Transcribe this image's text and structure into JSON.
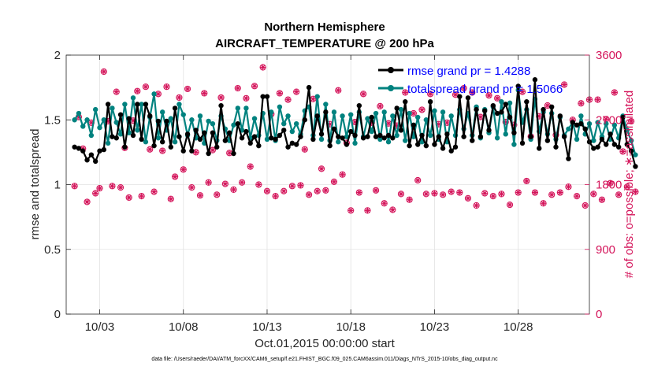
{
  "colors": {
    "rmse": "#000000",
    "spread": "#00827f",
    "obs": "#d4145a",
    "legend_text": "#0000ff",
    "grid": "#e2e2e2"
  },
  "footer": "data file: /Users/raeder/DAI/ATM_forcXX/CAM6_setup/f.e21.FHIST_BGC.f09_025.CAM6assim.011/Diags_NTrS_2015-10/obs_diag_output.nc",
  "chart_data": {
    "type": "line",
    "title": "Northern Hemisphere",
    "subtitle": "AIRCRAFT_TEMPERATURE @ 200 hPa",
    "xlabel": "Oct.01,2015 00:00:00 start",
    "ylabel": "rmse and totalspread",
    "y2label": "# of obs: o=possible; ∗=assimilated",
    "xlim": [
      1.0,
      32.25
    ],
    "ylim": [
      0,
      2
    ],
    "y2lim": [
      0,
      3600
    ],
    "x_ticks": [
      3,
      8,
      13,
      18,
      23,
      28
    ],
    "x_tick_labels": [
      "10/03",
      "10/08",
      "10/13",
      "10/18",
      "10/23",
      "10/28"
    ],
    "y_ticks": [
      0,
      0.5,
      1,
      1.5,
      2
    ],
    "y_tick_labels": [
      "0",
      "0.5",
      "1",
      "1.5",
      "2"
    ],
    "y2_ticks": [
      0,
      900,
      1800,
      2700,
      3600
    ],
    "y2_tick_labels": [
      "0",
      "900",
      "1800",
      "2700",
      "3600"
    ],
    "grid": true,
    "legend_position": "top-right",
    "series": [
      {
        "name": "rmse grand pr = 1.4288",
        "axis": "left",
        "style": "line-with-dot-markers",
        "values": [
          1.29,
          1.28,
          1.26,
          1.19,
          1.23,
          1.18,
          1.26,
          1.27,
          1.62,
          1.37,
          1.36,
          1.54,
          1.29,
          1.51,
          1.38,
          1.62,
          1.35,
          1.62,
          1.53,
          1.3,
          1.49,
          1.33,
          1.49,
          1.29,
          1.59,
          1.37,
          1.26,
          1.39,
          1.26,
          1.42,
          1.35,
          1.4,
          1.24,
          1.4,
          1.29,
          1.61,
          1.34,
          1.4,
          1.24,
          1.47,
          1.36,
          1.41,
          1.32,
          1.37,
          1.3,
          1.68,
          1.68,
          1.36,
          1.35,
          1.38,
          1.42,
          1.29,
          1.32,
          1.31,
          1.37,
          1.5,
          1.75,
          1.35,
          1.53,
          1.39,
          1.56,
          1.3,
          1.43,
          1.37,
          1.36,
          1.31,
          1.41,
          1.38,
          1.61,
          1.36,
          1.37,
          1.52,
          1.37,
          1.38,
          1.36,
          1.38,
          1.36,
          1.59,
          1.42,
          1.64,
          1.3,
          1.46,
          1.31,
          1.38,
          1.3,
          1.64,
          1.31,
          1.37,
          1.28,
          1.39,
          1.26,
          1.29,
          1.68,
          1.37,
          1.67,
          1.34,
          1.58,
          1.37,
          1.57,
          1.42,
          1.61,
          1.55,
          1.56,
          1.62,
          1.52,
          1.4,
          1.76,
          1.32,
          1.64,
          1.37,
          1.81,
          1.28,
          1.58,
          1.34,
          1.6,
          1.29,
          1.53,
          1.37,
          1.2,
          1.48,
          1.46,
          1.47,
          1.43,
          1.33,
          1.28,
          1.29,
          1.35,
          1.31,
          1.39,
          1.31,
          1.29,
          1.52,
          1.31,
          1.26,
          1.14
        ]
      },
      {
        "name": "totalspread grand pr = 1.5066",
        "axis": "left",
        "style": "line-with-dot-markers",
        "values": [
          1.5,
          1.55,
          1.45,
          1.5,
          1.38,
          1.58,
          1.44,
          1.5,
          1.32,
          1.59,
          1.48,
          1.39,
          1.62,
          1.4,
          1.67,
          1.42,
          1.62,
          1.33,
          1.52,
          1.7,
          1.36,
          1.56,
          1.42,
          1.51,
          1.33,
          1.62,
          1.54,
          1.38,
          1.5,
          1.36,
          1.53,
          1.32,
          1.49,
          1.47,
          1.34,
          1.53,
          1.43,
          1.34,
          1.46,
          1.59,
          1.42,
          1.59,
          1.36,
          1.51,
          1.38,
          1.55,
          1.35,
          1.56,
          1.34,
          1.6,
          1.47,
          1.53,
          1.41,
          1.47,
          1.39,
          1.57,
          1.6,
          1.38,
          1.68,
          1.35,
          1.62,
          1.34,
          1.56,
          1.33,
          1.53,
          1.37,
          1.54,
          1.32,
          1.56,
          1.37,
          1.51,
          1.41,
          1.55,
          1.35,
          1.56,
          1.33,
          1.53,
          1.38,
          1.58,
          1.34,
          1.55,
          1.37,
          1.52,
          1.33,
          1.5,
          1.38,
          1.57,
          1.35,
          1.56,
          1.33,
          1.53,
          1.38,
          1.58,
          1.43,
          1.55,
          1.38,
          1.6,
          1.36,
          1.58,
          1.4,
          1.6,
          1.36,
          1.64,
          1.39,
          1.63,
          1.31,
          1.73,
          1.48,
          1.58,
          1.35,
          1.66,
          1.41,
          1.56,
          1.39,
          1.55,
          1.35,
          1.52,
          1.38,
          1.43,
          1.48,
          1.35,
          1.53,
          1.39,
          1.47,
          1.34,
          1.48,
          1.37,
          1.47,
          1.35,
          1.46,
          1.36,
          1.53,
          1.42,
          1.34,
          1.23
        ]
      },
      {
        "name": "obs possible",
        "axis": "right",
        "style": "circle-markers",
        "values": [
          1780,
          2740,
          2300,
          1560,
          2660,
          1680,
          1750,
          3370,
          2680,
          1780,
          3090,
          1760,
          2310,
          1620,
          2690,
          3100,
          1640,
          3160,
          2290,
          1700,
          3060,
          2270,
          3160,
          1600,
          1910,
          3010,
          2010,
          3130,
          1760,
          2250,
          1650,
          3070,
          1830,
          2280,
          1660,
          3010,
          1810,
          2240,
          1730,
          3140,
          1830,
          3000,
          2050,
          3170,
          1800,
          3430,
          1710,
          2780,
          1640,
          3070,
          1710,
          2980,
          1780,
          3090,
          1790,
          2290,
          1660,
          2990,
          1710,
          2020,
          1720,
          2640,
          1840,
          3110,
          1940,
          2380,
          1440,
          2670,
          1690,
          3060,
          1440,
          2660,
          1720,
          2890,
          1540,
          2650,
          1450,
          2620,
          1670,
          3080,
          1590,
          2790,
          1860,
          2840,
          1670,
          3060,
          1680,
          2640,
          1660,
          2660,
          1700,
          3050,
          1690,
          3140,
          1610,
          3080,
          1510,
          2740,
          1680,
          3040,
          1640,
          3000,
          1670,
          2670,
          1520,
          2630,
          1690,
          3090,
          1850,
          2470,
          1690,
          2750,
          1540,
          2900,
          1660,
          2490,
          1690,
          3190,
          1770,
          2700,
          1640,
          2930,
          1510,
          2980,
          1670,
          2980,
          1590,
          2710,
          1820,
          3080,
          1660,
          2260,
          1770,
          2680,
          1700
        ]
      },
      {
        "name": "obs assimilated",
        "axis": "right",
        "style": "asterisk-markers",
        "values": [
          1780,
          2740,
          2300,
          1560,
          2660,
          1680,
          1750,
          3370,
          2680,
          1780,
          3090,
          1760,
          2310,
          1620,
          2690,
          3100,
          1640,
          3160,
          2290,
          1700,
          3060,
          2270,
          3160,
          1600,
          1910,
          3010,
          2010,
          3130,
          1760,
          2250,
          1650,
          3070,
          1830,
          2280,
          1660,
          3010,
          1810,
          2240,
          1730,
          3140,
          1830,
          3000,
          2050,
          3170,
          1800,
          3430,
          1710,
          2780,
          1640,
          3070,
          1710,
          2980,
          1780,
          3090,
          1790,
          2290,
          1660,
          2990,
          1710,
          2020,
          1720,
          2640,
          1840,
          3110,
          1940,
          2380,
          1440,
          2670,
          1690,
          3060,
          1440,
          2660,
          1720,
          2890,
          1540,
          2650,
          1450,
          2620,
          1670,
          3080,
          1590,
          2790,
          1860,
          2840,
          1670,
          3060,
          1680,
          2640,
          1660,
          2660,
          1700,
          3050,
          1690,
          3140,
          1610,
          3080,
          1510,
          2740,
          1680,
          3040,
          1640,
          3000,
          1670,
          2670,
          1520,
          2630,
          1690,
          3090,
          1850,
          2470,
          1690,
          2750,
          1540,
          2900,
          1660,
          2490,
          1690,
          3190,
          1770,
          2700,
          1640,
          2930,
          1510,
          2980,
          1670,
          2980,
          1590,
          2710,
          1820,
          3080,
          1660,
          2260,
          1770,
          2680,
          1700
        ]
      }
    ]
  }
}
